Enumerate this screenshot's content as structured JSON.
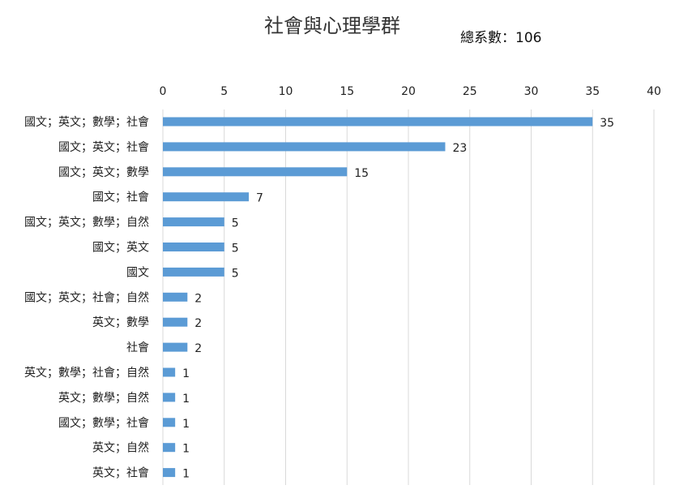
{
  "chart_data": {
    "type": "bar",
    "orientation": "horizontal",
    "title": "社會與心理學群",
    "annotation": "總系數：106",
    "categories": [
      "國文；英文；數學；社會",
      "國文；英文；社會",
      "國文；英文；數學",
      "國文；社會",
      "國文；英文；數學；自然",
      "國文；英文",
      "國文",
      "國文；英文；社會；自然",
      "英文；數學",
      "社會",
      "英文；數學；社會；自然",
      "英文；數學；自然",
      "國文；數學；社會",
      "英文；自然",
      "英文；社會"
    ],
    "values": [
      35,
      23,
      15,
      7,
      5,
      5,
      5,
      2,
      2,
      2,
      1,
      1,
      1,
      1,
      1
    ],
    "xlim": [
      0,
      40
    ],
    "xticks": [
      0,
      5,
      10,
      15,
      20,
      25,
      30,
      35,
      40
    ],
    "x_axis_position": "top",
    "grid": true,
    "data_labels": true,
    "bar_color": "#5b9bd5",
    "grid_color": "#d9d9d9"
  }
}
